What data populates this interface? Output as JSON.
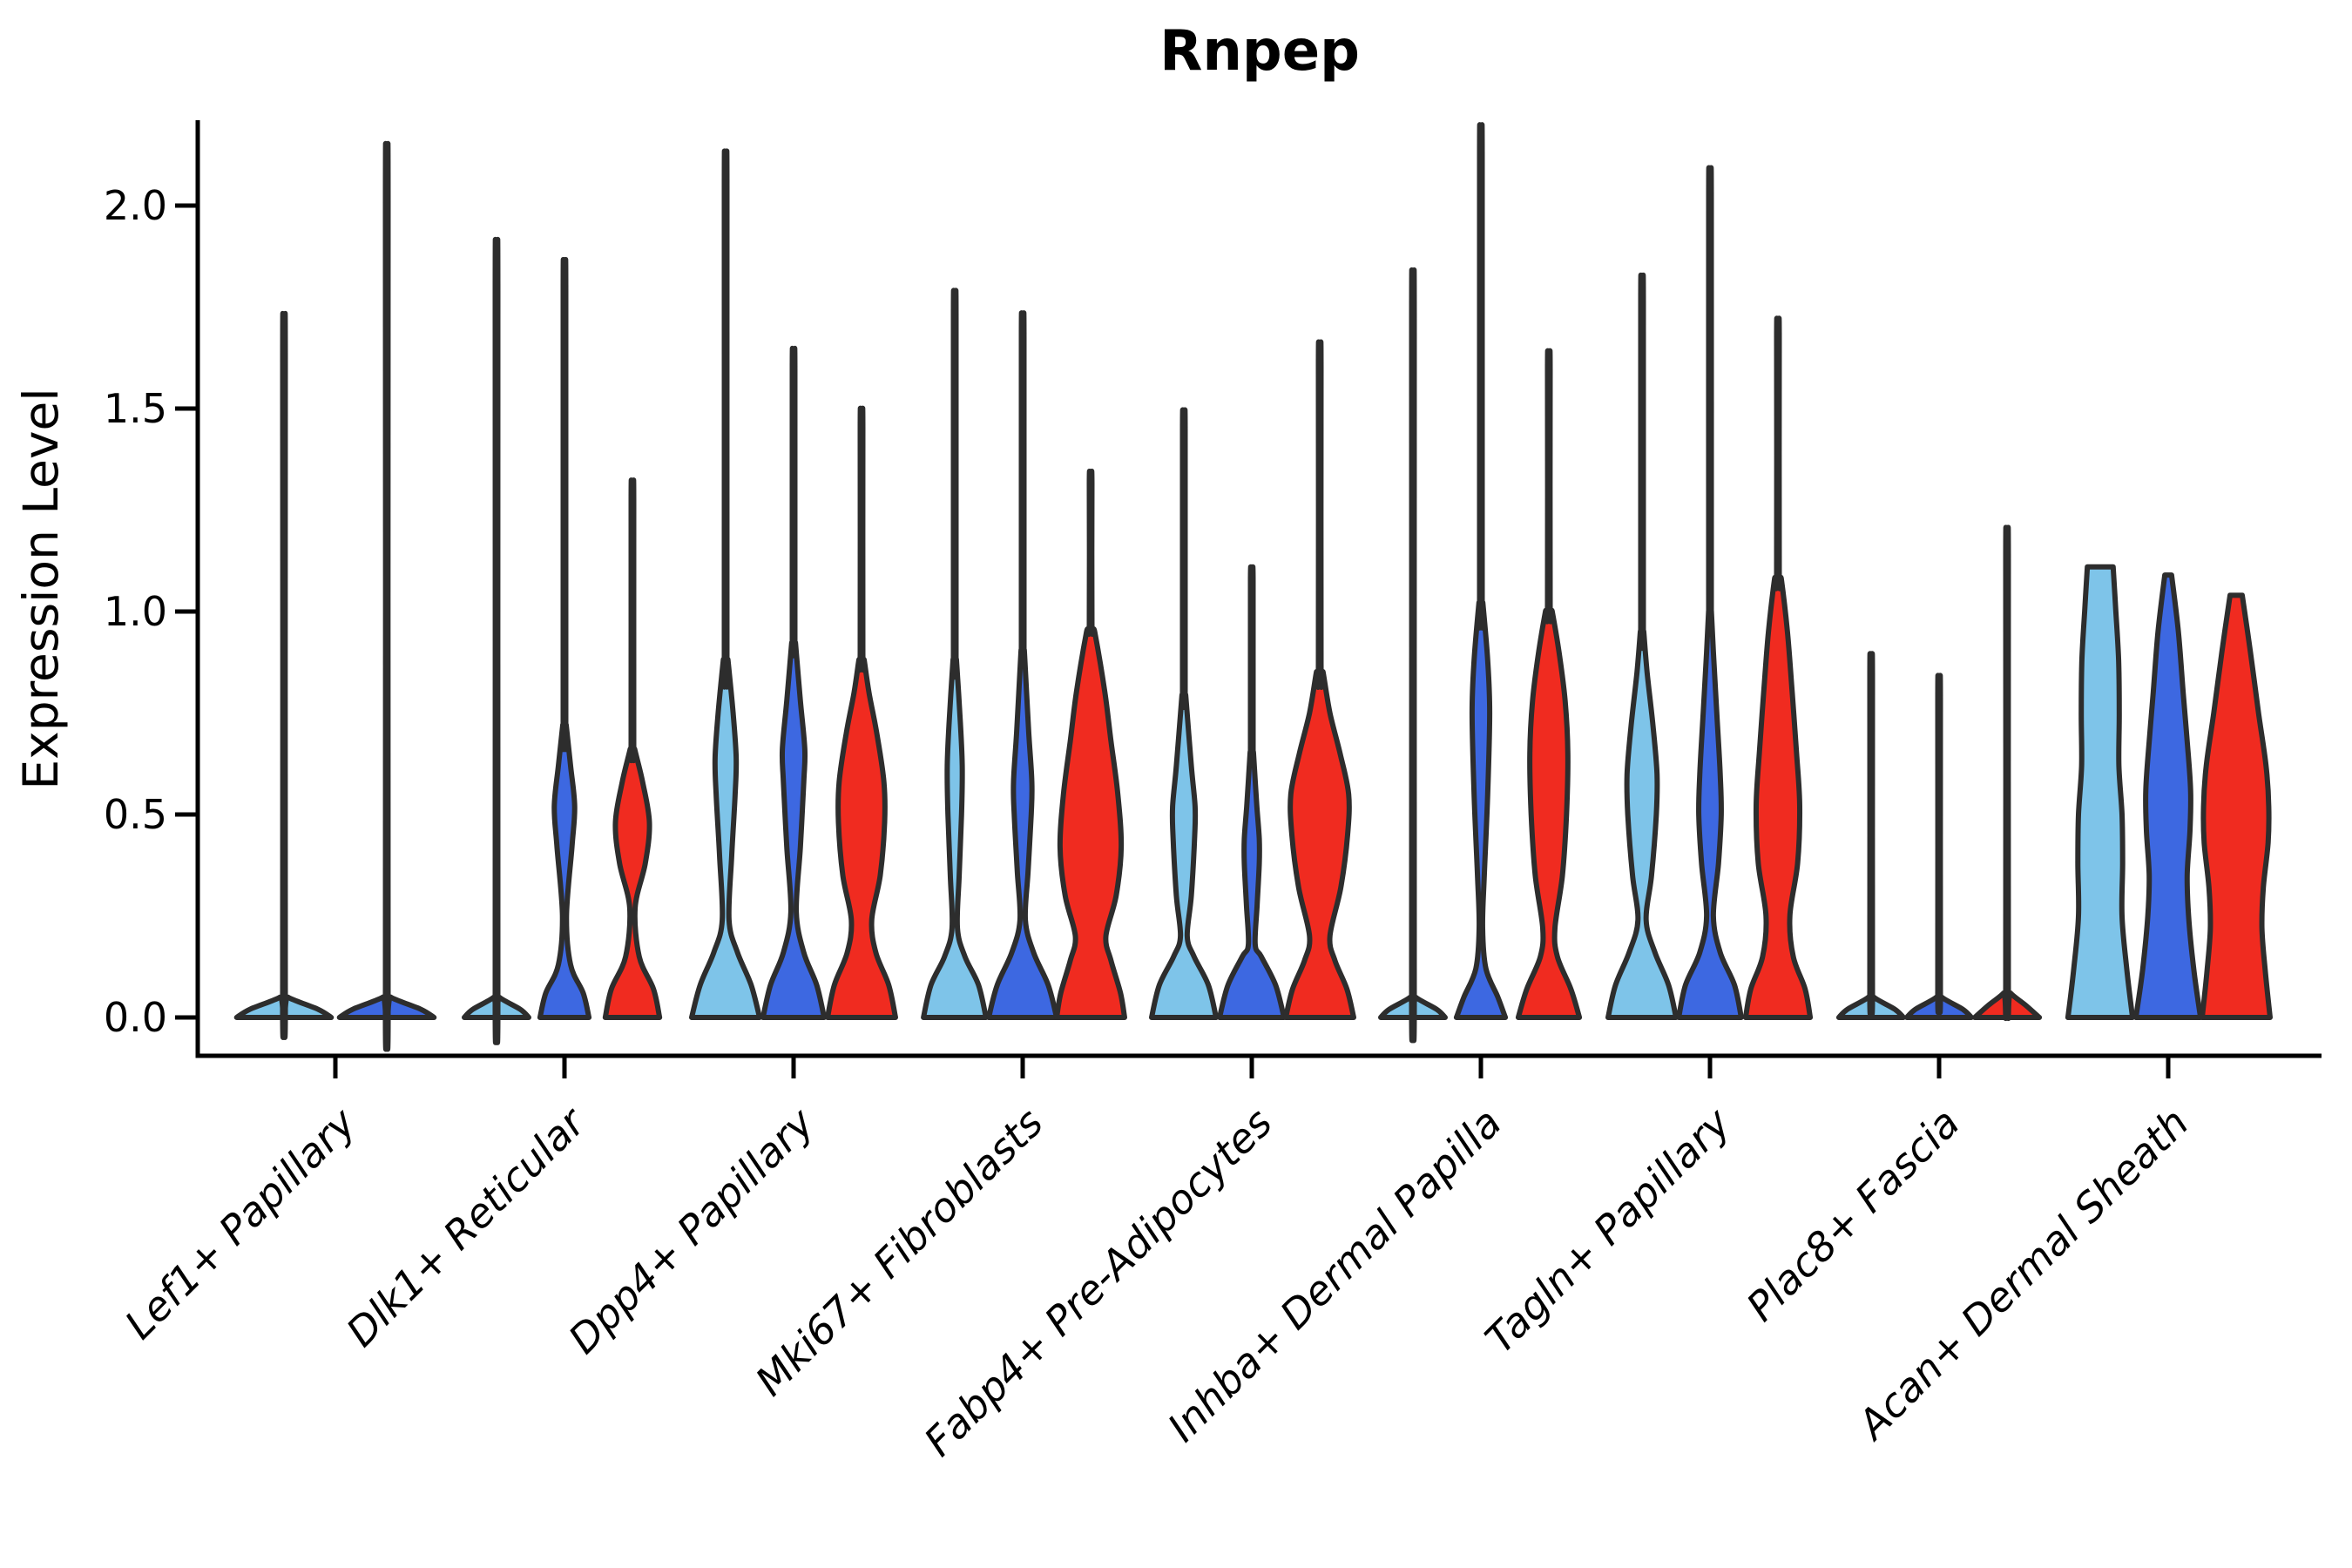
{
  "title": "Rnpep",
  "y_axis": {
    "label": "Expression Level",
    "tick_labels": [
      "0.0",
      "0.5",
      "1.0",
      "1.5",
      "2.0"
    ],
    "tick_values": [
      0.0,
      0.5,
      1.0,
      1.5,
      2.0
    ]
  },
  "colors": {
    "condition_1": "#7EC4E9",
    "condition_2": "#3D68E1",
    "condition_3": "#F02B20",
    "outline": "#2D2D2D",
    "axis": "#000000"
  },
  "chart_data": {
    "type": "violin",
    "title": "Rnpep",
    "xlabel": "",
    "ylabel": "Expression Level",
    "ylim": [
      -0.09,
      2.22
    ],
    "grid": false,
    "legend": "none",
    "categories": [
      "Lef1+ Papillary",
      "Dlk1+ Reticular",
      "Dpp4+ Papillary",
      "Mki67+ Fibroblasts",
      "Fabp4+ Pre-Adipocytes",
      "Inhba+ Dermal Papilla",
      "Tagln+ Papillary",
      "Plac8+ Fascia",
      "Acan+ Dermal Sheath"
    ],
    "series_colors": [
      "#7EC4E9",
      "#3D68E1",
      "#F02B20"
    ],
    "note_profiles": "profile = [expression_value, relative_half_width]; max = top of thin KDE spike; max null means body reaches its own top",
    "groups": [
      {
        "label": "Lef1+ Papillary",
        "violins": [
          {
            "color": 0,
            "max": 1.63,
            "profile": [
              [
                0,
                0.97
              ],
              [
                0.02,
                0.7
              ],
              [
                0.05,
                0.08
              ]
            ]
          },
          {
            "color": 1,
            "max": 2.02,
            "profile": [
              [
                0,
                0.97
              ],
              [
                0.02,
                0.7
              ],
              [
                0.05,
                0.08
              ]
            ]
          }
        ]
      },
      {
        "label": "Dlk1+ Reticular",
        "violins": [
          {
            "color": 0,
            "max": 1.8,
            "profile": [
              [
                0,
                0.95
              ],
              [
                0.02,
                0.7
              ],
              [
                0.05,
                0.08
              ]
            ]
          },
          {
            "color": 1,
            "max": 1.8,
            "profile": [
              [
                0,
                0.72
              ],
              [
                0.06,
                0.55
              ],
              [
                0.13,
                0.18
              ],
              [
                0.25,
                0.06
              ],
              [
                0.42,
                0.22
              ],
              [
                0.52,
                0.3
              ],
              [
                0.62,
                0.18
              ],
              [
                0.72,
                0.05
              ]
            ]
          },
          {
            "color": 2,
            "max": 1.29,
            "profile": [
              [
                0,
                0.8
              ],
              [
                0.07,
                0.62
              ],
              [
                0.15,
                0.2
              ],
              [
                0.27,
                0.08
              ],
              [
                0.38,
                0.38
              ],
              [
                0.48,
                0.5
              ],
              [
                0.58,
                0.3
              ],
              [
                0.66,
                0.07
              ]
            ]
          }
        ]
      },
      {
        "label": "Dpp4+ Papillary",
        "violins": [
          {
            "color": 0,
            "max": 2.06,
            "profile": [
              [
                0,
                1.0
              ],
              [
                0.08,
                0.75
              ],
              [
                0.16,
                0.35
              ],
              [
                0.24,
                0.1
              ],
              [
                0.4,
                0.18
              ],
              [
                0.55,
                0.28
              ],
              [
                0.64,
                0.31
              ],
              [
                0.75,
                0.22
              ],
              [
                0.88,
                0.07
              ]
            ]
          },
          {
            "color": 1,
            "max": 1.61,
            "profile": [
              [
                0,
                0.9
              ],
              [
                0.08,
                0.68
              ],
              [
                0.16,
                0.3
              ],
              [
                0.26,
                0.08
              ],
              [
                0.42,
                0.2
              ],
              [
                0.58,
                0.3
              ],
              [
                0.66,
                0.33
              ],
              [
                0.78,
                0.2
              ],
              [
                0.92,
                0.06
              ]
            ]
          },
          {
            "color": 2,
            "max": 1.47,
            "profile": [
              [
                0,
                1.0
              ],
              [
                0.08,
                0.8
              ],
              [
                0.16,
                0.42
              ],
              [
                0.24,
                0.3
              ],
              [
                0.35,
                0.55
              ],
              [
                0.48,
                0.68
              ],
              [
                0.58,
                0.66
              ],
              [
                0.7,
                0.45
              ],
              [
                0.8,
                0.22
              ],
              [
                0.88,
                0.08
              ]
            ]
          }
        ]
      },
      {
        "label": "Mki67+ Fibroblasts",
        "violins": [
          {
            "color": 0,
            "max": 1.74,
            "profile": [
              [
                0,
                0.92
              ],
              [
                0.08,
                0.7
              ],
              [
                0.15,
                0.3
              ],
              [
                0.22,
                0.08
              ],
              [
                0.35,
                0.13
              ],
              [
                0.5,
                0.2
              ],
              [
                0.62,
                0.22
              ],
              [
                0.75,
                0.15
              ],
              [
                0.88,
                0.05
              ]
            ]
          },
          {
            "color": 1,
            "max": 1.69,
            "profile": [
              [
                0,
                1.0
              ],
              [
                0.08,
                0.75
              ],
              [
                0.16,
                0.32
              ],
              [
                0.24,
                0.08
              ],
              [
                0.36,
                0.16
              ],
              [
                0.5,
                0.25
              ],
              [
                0.58,
                0.27
              ],
              [
                0.7,
                0.18
              ],
              [
                0.9,
                0.05
              ]
            ]
          },
          {
            "color": 2,
            "max": 1.33,
            "profile": [
              [
                0,
                1.0
              ],
              [
                0.06,
                0.88
              ],
              [
                0.14,
                0.6
              ],
              [
                0.2,
                0.45
              ],
              [
                0.3,
                0.75
              ],
              [
                0.42,
                0.9
              ],
              [
                0.55,
                0.8
              ],
              [
                0.68,
                0.6
              ],
              [
                0.8,
                0.42
              ],
              [
                0.95,
                0.12
              ]
            ]
          }
        ]
      },
      {
        "label": "Fabp4+ Pre-Adipocytes",
        "violins": [
          {
            "color": 0,
            "max": 1.46,
            "profile": [
              [
                0,
                0.95
              ],
              [
                0.08,
                0.72
              ],
              [
                0.15,
                0.3
              ],
              [
                0.2,
                0.1
              ],
              [
                0.3,
                0.22
              ],
              [
                0.45,
                0.32
              ],
              [
                0.52,
                0.33
              ],
              [
                0.62,
                0.22
              ],
              [
                0.79,
                0.06
              ]
            ]
          },
          {
            "color": 1,
            "max": 1.09,
            "profile": [
              [
                0,
                0.95
              ],
              [
                0.08,
                0.7
              ],
              [
                0.15,
                0.28
              ],
              [
                0.18,
                0.1
              ],
              [
                0.28,
                0.16
              ],
              [
                0.38,
                0.22
              ],
              [
                0.44,
                0.22
              ],
              [
                0.52,
                0.15
              ],
              [
                0.65,
                0.05
              ]
            ]
          },
          {
            "color": 2,
            "max": 1.62,
            "profile": [
              [
                0,
                1.0
              ],
              [
                0.07,
                0.8
              ],
              [
                0.14,
                0.45
              ],
              [
                0.2,
                0.3
              ],
              [
                0.32,
                0.62
              ],
              [
                0.45,
                0.82
              ],
              [
                0.55,
                0.85
              ],
              [
                0.65,
                0.6
              ],
              [
                0.75,
                0.3
              ],
              [
                0.85,
                0.1
              ]
            ]
          }
        ]
      },
      {
        "label": "Inhba+ Dermal Papilla",
        "violins": [
          {
            "color": 0,
            "max": 1.73,
            "profile": [
              [
                0,
                0.95
              ],
              [
                0.02,
                0.7
              ],
              [
                0.05,
                0.08
              ]
            ]
          },
          {
            "color": 1,
            "max": 2.13,
            "profile": [
              [
                0,
                0.72
              ],
              [
                0.05,
                0.5
              ],
              [
                0.12,
                0.15
              ],
              [
                0.22,
                0.05
              ],
              [
                0.35,
                0.1
              ],
              [
                0.55,
                0.2
              ],
              [
                0.75,
                0.26
              ],
              [
                0.88,
                0.2
              ],
              [
                1.02,
                0.06
              ]
            ]
          },
          {
            "color": 2,
            "max": 1.61,
            "profile": [
              [
                0,
                0.9
              ],
              [
                0.07,
                0.65
              ],
              [
                0.15,
                0.25
              ],
              [
                0.22,
                0.18
              ],
              [
                0.35,
                0.4
              ],
              [
                0.5,
                0.52
              ],
              [
                0.65,
                0.56
              ],
              [
                0.78,
                0.48
              ],
              [
                0.9,
                0.3
              ],
              [
                1.0,
                0.1
              ]
            ]
          }
        ]
      },
      {
        "label": "Tagln+ Papillary",
        "violins": [
          {
            "color": 0,
            "max": 1.78,
            "profile": [
              [
                0,
                1.0
              ],
              [
                0.08,
                0.78
              ],
              [
                0.16,
                0.38
              ],
              [
                0.24,
                0.12
              ],
              [
                0.35,
                0.28
              ],
              [
                0.5,
                0.42
              ],
              [
                0.6,
                0.44
              ],
              [
                0.72,
                0.32
              ],
              [
                0.85,
                0.15
              ],
              [
                0.95,
                0.05
              ]
            ]
          },
          {
            "color": 1,
            "max": 2.03,
            "profile": [
              [
                0,
                0.92
              ],
              [
                0.08,
                0.72
              ],
              [
                0.16,
                0.3
              ],
              [
                0.25,
                0.1
              ],
              [
                0.38,
                0.25
              ],
              [
                0.5,
                0.33
              ],
              [
                0.6,
                0.3
              ],
              [
                0.75,
                0.2
              ],
              [
                0.9,
                0.1
              ],
              [
                1.0,
                0.04
              ]
            ]
          },
          {
            "color": 2,
            "max": 1.69,
            "profile": [
              [
                0,
                0.95
              ],
              [
                0.07,
                0.8
              ],
              [
                0.15,
                0.45
              ],
              [
                0.25,
                0.35
              ],
              [
                0.38,
                0.58
              ],
              [
                0.52,
                0.64
              ],
              [
                0.65,
                0.55
              ],
              [
                0.8,
                0.42
              ],
              [
                0.95,
                0.28
              ],
              [
                1.08,
                0.1
              ]
            ]
          }
        ]
      },
      {
        "label": "Plac8+ Fascia",
        "violins": [
          {
            "color": 0,
            "max": 0.85,
            "profile": [
              [
                0,
                0.95
              ],
              [
                0.02,
                0.7
              ],
              [
                0.05,
                0.08
              ]
            ]
          },
          {
            "color": 1,
            "max": 0.8,
            "profile": [
              [
                0,
                0.95
              ],
              [
                0.02,
                0.7
              ],
              [
                0.05,
                0.08
              ]
            ]
          },
          {
            "color": 2,
            "max": 1.14,
            "profile": [
              [
                0,
                0.95
              ],
              [
                0.03,
                0.55
              ],
              [
                0.06,
                0.1
              ]
            ]
          }
        ]
      },
      {
        "label": "Acan+ Dermal Sheath",
        "violins": [
          {
            "color": 0,
            "max": null,
            "profile": [
              [
                0,
                0.95
              ],
              [
                0.12,
                0.78
              ],
              [
                0.25,
                0.64
              ],
              [
                0.38,
                0.66
              ],
              [
                0.5,
                0.64
              ],
              [
                0.62,
                0.55
              ],
              [
                0.75,
                0.56
              ],
              [
                0.88,
                0.54
              ],
              [
                1.0,
                0.46
              ],
              [
                1.11,
                0.38
              ]
            ]
          },
          {
            "color": 1,
            "max": null,
            "profile": [
              [
                0,
                0.95
              ],
              [
                0.12,
                0.75
              ],
              [
                0.25,
                0.6
              ],
              [
                0.35,
                0.56
              ],
              [
                0.46,
                0.64
              ],
              [
                0.56,
                0.66
              ],
              [
                0.68,
                0.56
              ],
              [
                0.8,
                0.44
              ],
              [
                0.95,
                0.3
              ],
              [
                1.09,
                0.1
              ]
            ]
          },
          {
            "color": 2,
            "max": null,
            "profile": [
              [
                0,
                1.0
              ],
              [
                0.12,
                0.85
              ],
              [
                0.22,
                0.76
              ],
              [
                0.32,
                0.8
              ],
              [
                0.43,
                0.94
              ],
              [
                0.52,
                0.96
              ],
              [
                0.62,
                0.88
              ],
              [
                0.75,
                0.66
              ],
              [
                0.9,
                0.42
              ],
              [
                1.04,
                0.18
              ]
            ]
          }
        ]
      }
    ]
  }
}
